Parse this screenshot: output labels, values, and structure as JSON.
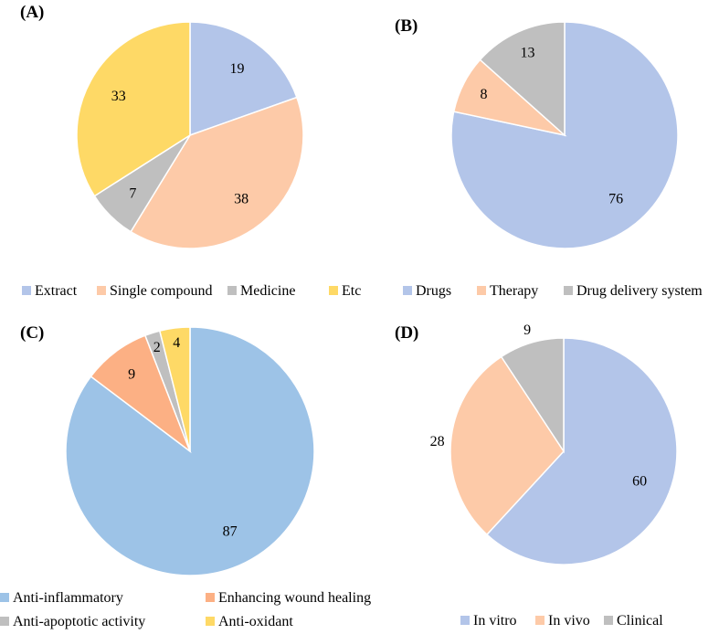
{
  "chart_data": [
    {
      "type": "pie",
      "panel": "(A)",
      "categories": [
        "Extract",
        "Single compound",
        "Medicine",
        "Etc"
      ],
      "values": [
        19,
        38,
        7,
        33
      ],
      "colors": [
        "#b3c5e9",
        "#fdcaa8",
        "#bfbfbf",
        "#fed966"
      ],
      "legend_position": "bottom"
    },
    {
      "type": "pie",
      "panel": "(B)",
      "categories": [
        "Drugs",
        "Therapy",
        "Drug delivery system"
      ],
      "values": [
        76,
        8,
        13
      ],
      "colors": [
        "#b3c5e9",
        "#fdcaa8",
        "#bfbfbf"
      ],
      "legend_position": "bottom"
    },
    {
      "type": "pie",
      "panel": "(C)",
      "categories": [
        "Anti-inflammatory",
        "Enhancing wound healing",
        "Anti-apoptotic activity",
        "Anti-oxidant"
      ],
      "values": [
        87,
        9,
        2,
        4
      ],
      "colors": [
        "#9dc3e7",
        "#fcb084",
        "#bfbfbf",
        "#fed966"
      ],
      "legend_position": "bottom"
    },
    {
      "type": "pie",
      "panel": "(D)",
      "categories": [
        "In vitro",
        "In vivo",
        "Clinical"
      ],
      "values": [
        60,
        28,
        9
      ],
      "colors": [
        "#b3c5e9",
        "#fdcaa8",
        "#bfbfbf"
      ],
      "legend_position": "bottom"
    }
  ]
}
